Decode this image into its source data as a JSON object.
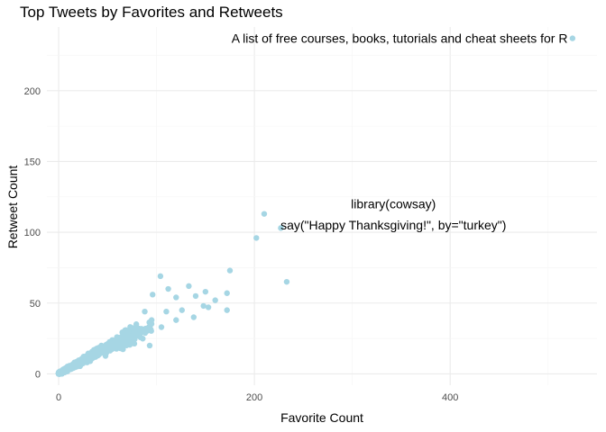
{
  "chart_data": {
    "type": "scatter",
    "title": "Top Tweets by Favorites and Retweets",
    "xlabel": "Favorite Count",
    "ylabel": "Retweet Count",
    "xlim": [
      -12,
      550
    ],
    "ylim": [
      -8,
      245
    ],
    "x_ticks": [
      0,
      200,
      400
    ],
    "y_ticks": [
      0,
      50,
      100,
      150,
      200
    ],
    "grid": true,
    "point_color": "#a6d6e4",
    "outliers": [
      {
        "x": 525,
        "y": 237
      },
      {
        "x": 210,
        "y": 113
      },
      {
        "x": 227,
        "y": 103
      },
      {
        "x": 202,
        "y": 96
      },
      {
        "x": 233,
        "y": 65
      },
      {
        "x": 175,
        "y": 73
      },
      {
        "x": 104,
        "y": 69
      },
      {
        "x": 133,
        "y": 62
      },
      {
        "x": 150,
        "y": 58
      },
      {
        "x": 140,
        "y": 55
      },
      {
        "x": 160,
        "y": 52
      },
      {
        "x": 172,
        "y": 57
      },
      {
        "x": 172,
        "y": 45
      },
      {
        "x": 153,
        "y": 47
      },
      {
        "x": 120,
        "y": 54
      },
      {
        "x": 110,
        "y": 44
      },
      {
        "x": 126,
        "y": 45
      },
      {
        "x": 96,
        "y": 56
      },
      {
        "x": 88,
        "y": 44
      },
      {
        "x": 95,
        "y": 38
      },
      {
        "x": 120,
        "y": 38
      },
      {
        "x": 105,
        "y": 33
      },
      {
        "x": 138,
        "y": 40
      },
      {
        "x": 93,
        "y": 20
      },
      {
        "x": 148,
        "y": 48
      },
      {
        "x": 112,
        "y": 60
      },
      {
        "x": 82,
        "y": 32
      }
    ],
    "annotations": [
      {
        "text": "A list of free courses, books, tutorials and cheat sheets for R",
        "x": 520,
        "y": 237,
        "anchor": "end"
      },
      {
        "text": "library(cowsay)",
        "x": 342,
        "y": 120,
        "anchor": "middle"
      },
      {
        "text": "say(\"Happy Thanksgiving!\", by=\"turkey\")",
        "x": 342,
        "y": 105,
        "anchor": "middle"
      }
    ]
  }
}
